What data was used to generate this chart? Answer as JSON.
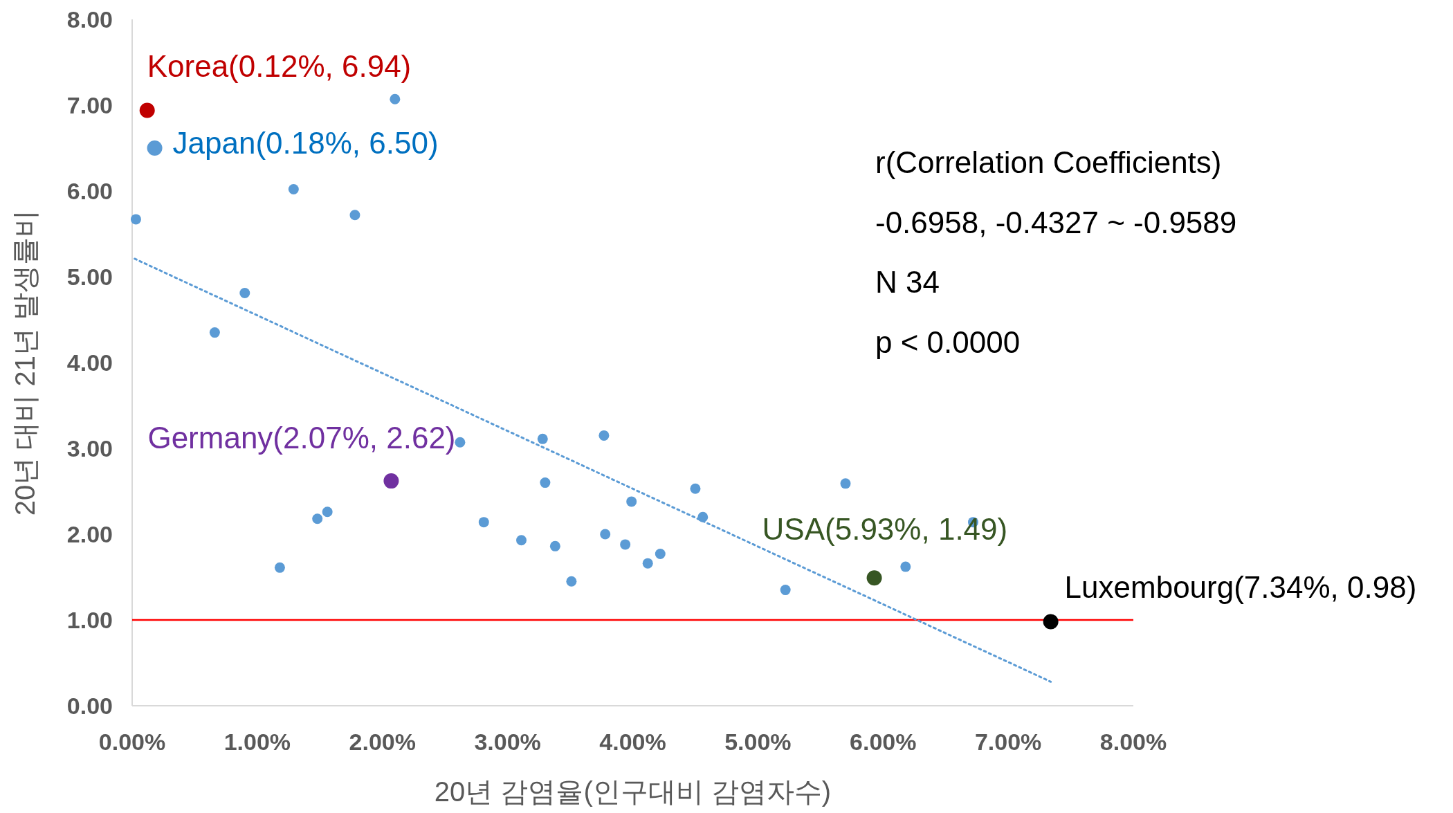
{
  "chart_data": {
    "type": "scatter",
    "xlabel": "20년 감염율(인구대비 감염자수)",
    "ylabel": "20년 대비 21년 발생률비",
    "xlim": [
      0,
      8
    ],
    "ylim": [
      0,
      8
    ],
    "xticks": [
      {
        "value": 0,
        "label": "0.00%"
      },
      {
        "value": 1,
        "label": "1.00%"
      },
      {
        "value": 2,
        "label": "2.00%"
      },
      {
        "value": 3,
        "label": "3.00%"
      },
      {
        "value": 4,
        "label": "4.00%"
      },
      {
        "value": 5,
        "label": "5.00%"
      },
      {
        "value": 6,
        "label": "6.00%"
      },
      {
        "value": 7,
        "label": "7.00%"
      },
      {
        "value": 8,
        "label": "8.00%"
      }
    ],
    "yticks": [
      {
        "value": 0,
        "label": "0.00"
      },
      {
        "value": 1,
        "label": "1.00"
      },
      {
        "value": 2,
        "label": "2.00"
      },
      {
        "value": 3,
        "label": "3.00"
      },
      {
        "value": 4,
        "label": "4.00"
      },
      {
        "value": 5,
        "label": "5.00"
      },
      {
        "value": 6,
        "label": "6.00"
      },
      {
        "value": 7,
        "label": "7.00"
      },
      {
        "value": 8,
        "label": "8.00"
      }
    ],
    "grid": false,
    "marker": "circle",
    "series": [
      {
        "color": "#5b9bd5",
        "x": [
          0.03,
          2.1,
          1.29,
          1.78,
          0.9,
          0.66,
          2.62,
          3.28,
          3.77,
          3.3,
          3.99,
          4.5,
          4.56,
          5.7,
          6.72,
          2.81,
          1.56,
          1.48,
          3.11,
          3.38,
          3.78,
          3.94,
          4.22,
          4.12,
          3.51,
          1.18,
          5.22,
          6.18
        ],
        "values": [
          5.67,
          7.07,
          6.02,
          5.72,
          4.81,
          4.35,
          3.07,
          3.11,
          3.15,
          2.6,
          2.38,
          2.53,
          2.2,
          2.59,
          2.14,
          2.14,
          2.26,
          2.18,
          1.93,
          1.86,
          2.0,
          1.88,
          1.77,
          1.66,
          1.45,
          1.61,
          1.35,
          1.62
        ]
      },
      {
        "color": "#c00000",
        "x": [
          0.12
        ],
        "values": [
          6.94
        ]
      },
      {
        "color": "#5b9bd5",
        "x": [
          0.18
        ],
        "values": [
          6.5
        ]
      },
      {
        "color": "#7030a0",
        "x": [
          2.07
        ],
        "values": [
          2.62
        ]
      },
      {
        "color": "#375623",
        "x": [
          5.93
        ],
        "values": [
          1.49
        ]
      },
      {
        "color": "#000000",
        "x": [
          7.34
        ],
        "values": [
          0.98
        ]
      },
      {
        "type": "line",
        "color": "#5b9bd5",
        "line_style": "dotted",
        "marker": "none",
        "x": [
          0.02,
          7.34
        ],
        "values": [
          5.21,
          0.28
        ]
      }
    ],
    "ref_lines": [
      {
        "axis": "y",
        "value": 1,
        "color": "#ff0000"
      }
    ],
    "annotations": [
      {
        "text": "Korea(0.12%, 6.94)",
        "x": 0.12,
        "y": 6.94
      },
      {
        "text": "Japan(0.18%, 6.50)",
        "x": 0.18,
        "y": 6.5
      },
      {
        "text": "Germany(2.07%, 2.62)",
        "x": 2.07,
        "y": 2.62
      },
      {
        "text": "USA(5.93%, 1.49)",
        "x": 5.93,
        "y": 1.49
      },
      {
        "text": "Luxembourg(7.34%, 0.98)",
        "x": 7.34,
        "y": 0.98
      },
      "r(Correlation Coefficients)",
      "-0.6958, -0.4327 ~ -0.9589",
      "N 34",
      "p < 0.0000"
    ]
  }
}
